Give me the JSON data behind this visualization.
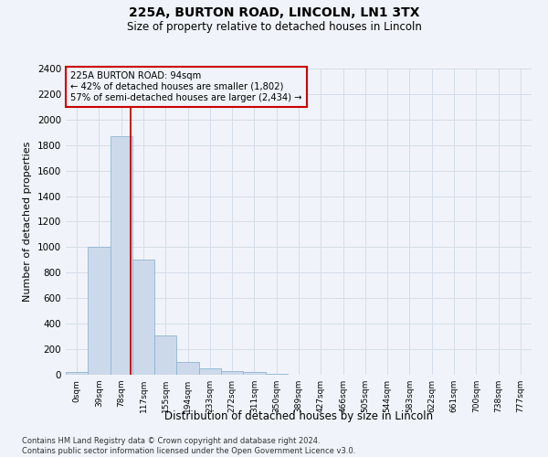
{
  "title_line1": "225A, BURTON ROAD, LINCOLN, LN1 3TX",
  "title_line2": "Size of property relative to detached houses in Lincoln",
  "xlabel": "Distribution of detached houses by size in Lincoln",
  "ylabel": "Number of detached properties",
  "bar_labels": [
    "0sqm",
    "39sqm",
    "78sqm",
    "117sqm",
    "155sqm",
    "194sqm",
    "233sqm",
    "272sqm",
    "311sqm",
    "350sqm",
    "389sqm",
    "427sqm",
    "466sqm",
    "505sqm",
    "544sqm",
    "583sqm",
    "622sqm",
    "661sqm",
    "700sqm",
    "738sqm",
    "777sqm"
  ],
  "bar_values": [
    25,
    1005,
    1870,
    900,
    305,
    100,
    50,
    30,
    22,
    5,
    0,
    0,
    0,
    0,
    0,
    0,
    0,
    0,
    0,
    0,
    0
  ],
  "bar_color": "#ccd9ea",
  "bar_edge_color": "#90b4d0",
  "grid_color": "#d5dde8",
  "vline_x": 2.42,
  "vline_color": "#cc0000",
  "annotation_title": "225A BURTON ROAD: 94sqm",
  "annotation_line1": "← 42% of detached houses are smaller (1,802)",
  "annotation_line2": "57% of semi-detached houses are larger (2,434) →",
  "annotation_box_color": "#cc0000",
  "ylim": [
    0,
    2400
  ],
  "yticks": [
    0,
    200,
    400,
    600,
    800,
    1000,
    1200,
    1400,
    1600,
    1800,
    2000,
    2200,
    2400
  ],
  "footer_line1": "Contains HM Land Registry data © Crown copyright and database right 2024.",
  "footer_line2": "Contains public sector information licensed under the Open Government Licence v3.0.",
  "background_color": "#f0f4fa"
}
